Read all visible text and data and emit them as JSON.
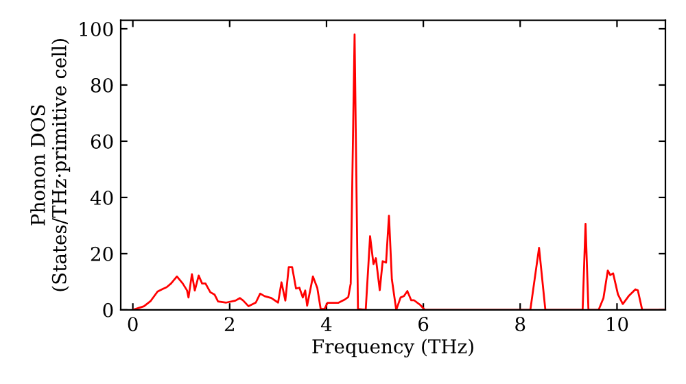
{
  "chart_data": {
    "type": "line",
    "xlabel": "Frequency (THz)",
    "ylabel": "Phonon DOS\n(States/THz·primitive cell)",
    "xlim": [
      -0.25,
      11
    ],
    "ylim": [
      0,
      103
    ],
    "xticks": [
      0,
      2,
      4,
      6,
      8,
      10
    ],
    "yticks": [
      0,
      20,
      40,
      60,
      80,
      100
    ],
    "grid": false,
    "legend": false,
    "marker": "none",
    "line_style": "solid",
    "series": [
      {
        "color": "#ff0000",
        "x": [
          0,
          0.23,
          0.37,
          0.51,
          0.6,
          0.7,
          0.79,
          0.91,
          1.03,
          1.12,
          1.15,
          1.22,
          1.28,
          1.36,
          1.43,
          1.5,
          1.6,
          1.69,
          1.76,
          1.93,
          2.12,
          2.21,
          2.28,
          2.39,
          2.54,
          2.63,
          2.72,
          2.86,
          3.0,
          3.07,
          3.15,
          3.22,
          3.29,
          3.37,
          3.44,
          3.51,
          3.56,
          3.6,
          3.72,
          3.81,
          3.88,
          3.96,
          4.02,
          4.24,
          4.38,
          4.45,
          4.5,
          4.58,
          4.65,
          4.81,
          4.9,
          4.97,
          5.02,
          5.1,
          5.16,
          5.23,
          5.29,
          5.35,
          5.44,
          5.53,
          5.6,
          5.67,
          5.75,
          5.81,
          5.94,
          6.03,
          8.21,
          8.39,
          8.52,
          9.29,
          9.35,
          9.41,
          9.62,
          9.72,
          9.81,
          9.86,
          9.92,
          10.02,
          10.12,
          10.24,
          10.38,
          10.43,
          10.52,
          11
        ],
        "values": [
          0,
          1.3,
          3.2,
          6.5,
          7.3,
          8.1,
          9.4,
          11.9,
          9.4,
          6.9,
          4.4,
          12.7,
          6.9,
          12.2,
          9.4,
          9.4,
          6.3,
          5.4,
          3.0,
          2.6,
          3.3,
          4.2,
          3.3,
          1.3,
          2.6,
          5.8,
          4.9,
          4.2,
          2.6,
          9.8,
          3.3,
          15.2,
          15.2,
          7.6,
          7.9,
          4.4,
          6.9,
          1.5,
          11.9,
          7.8,
          0.3,
          0.3,
          2.5,
          2.5,
          3.7,
          4.6,
          9.4,
          98,
          0.3,
          0,
          26.2,
          16.3,
          18.4,
          7.0,
          17.3,
          16.8,
          33.5,
          10.9,
          0,
          4.4,
          4.9,
          6.7,
          3.4,
          3.4,
          1.7,
          0,
          0,
          22.1,
          0,
          0,
          30.6,
          0,
          0,
          4.2,
          14.0,
          12.4,
          13.0,
          5.5,
          2.1,
          4.9,
          7.3,
          7.0,
          0,
          0
        ]
      }
    ]
  }
}
